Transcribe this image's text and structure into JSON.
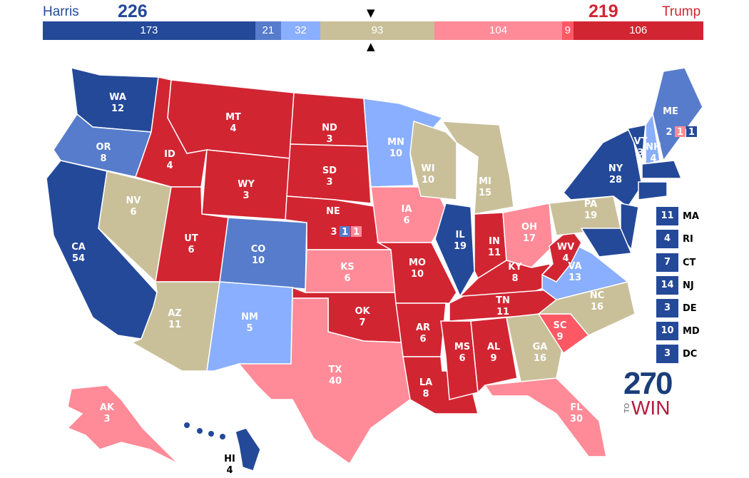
{
  "header": {
    "dem_name": "Harris",
    "dem_total": "226",
    "rep_name": "Trump",
    "rep_total": "219"
  },
  "colors": {
    "safe_d": "#244999",
    "likely_d": "#577ccc",
    "lean_d": "#8aafff",
    "tossup": "#c9c09a",
    "lean_r": "#ff8b98",
    "likely_r": "#ff5865",
    "safe_r": "#d22532"
  },
  "bar": [
    {
      "cat": "safe_d",
      "value": "173"
    },
    {
      "cat": "likely_d",
      "value": "21"
    },
    {
      "cat": "lean_d",
      "value": "32"
    },
    {
      "cat": "tossup",
      "value": "93"
    },
    {
      "cat": "lean_r",
      "value": "104"
    },
    {
      "cat": "likely_r",
      "value": "9"
    },
    {
      "cat": "safe_r",
      "value": "106"
    }
  ],
  "states": [
    {
      "abbr": "WA",
      "ev": "12",
      "cat": "safe_d"
    },
    {
      "abbr": "OR",
      "ev": "8",
      "cat": "likely_d"
    },
    {
      "abbr": "CA",
      "ev": "54",
      "cat": "safe_d"
    },
    {
      "abbr": "NV",
      "ev": "6",
      "cat": "tossup"
    },
    {
      "abbr": "ID",
      "ev": "4",
      "cat": "safe_r"
    },
    {
      "abbr": "MT",
      "ev": "4",
      "cat": "safe_r"
    },
    {
      "abbr": "WY",
      "ev": "3",
      "cat": "safe_r"
    },
    {
      "abbr": "UT",
      "ev": "6",
      "cat": "safe_r"
    },
    {
      "abbr": "AZ",
      "ev": "11",
      "cat": "tossup"
    },
    {
      "abbr": "CO",
      "ev": "10",
      "cat": "likely_d"
    },
    {
      "abbr": "NM",
      "ev": "5",
      "cat": "lean_d"
    },
    {
      "abbr": "ND",
      "ev": "3",
      "cat": "safe_r"
    },
    {
      "abbr": "SD",
      "ev": "3",
      "cat": "safe_r"
    },
    {
      "abbr": "NE",
      "ev": "3",
      "cat": "safe_r"
    },
    {
      "abbr": "KS",
      "ev": "6",
      "cat": "lean_r"
    },
    {
      "abbr": "OK",
      "ev": "7",
      "cat": "safe_r"
    },
    {
      "abbr": "TX",
      "ev": "40",
      "cat": "lean_r"
    },
    {
      "abbr": "MN",
      "ev": "10",
      "cat": "lean_d"
    },
    {
      "abbr": "IA",
      "ev": "6",
      "cat": "lean_r"
    },
    {
      "abbr": "MO",
      "ev": "10",
      "cat": "safe_r"
    },
    {
      "abbr": "AR",
      "ev": "6",
      "cat": "safe_r"
    },
    {
      "abbr": "LA",
      "ev": "8",
      "cat": "safe_r"
    },
    {
      "abbr": "WI",
      "ev": "10",
      "cat": "tossup"
    },
    {
      "abbr": "IL",
      "ev": "19",
      "cat": "safe_d"
    },
    {
      "abbr": "MI",
      "ev": "15",
      "cat": "tossup"
    },
    {
      "abbr": "IN",
      "ev": "11",
      "cat": "safe_r"
    },
    {
      "abbr": "OH",
      "ev": "17",
      "cat": "lean_r"
    },
    {
      "abbr": "KY",
      "ev": "8",
      "cat": "safe_r"
    },
    {
      "abbr": "TN",
      "ev": "11",
      "cat": "safe_r"
    },
    {
      "abbr": "MS",
      "ev": "6",
      "cat": "safe_r"
    },
    {
      "abbr": "AL",
      "ev": "9",
      "cat": "safe_r"
    },
    {
      "abbr": "GA",
      "ev": "16",
      "cat": "tossup"
    },
    {
      "abbr": "FL",
      "ev": "30",
      "cat": "lean_r"
    },
    {
      "abbr": "SC",
      "ev": "9",
      "cat": "likely_r"
    },
    {
      "abbr": "NC",
      "ev": "16",
      "cat": "tossup"
    },
    {
      "abbr": "VA",
      "ev": "13",
      "cat": "lean_d"
    },
    {
      "abbr": "WV",
      "ev": "4",
      "cat": "safe_r"
    },
    {
      "abbr": "PA",
      "ev": "19",
      "cat": "tossup"
    },
    {
      "abbr": "NY",
      "ev": "28",
      "cat": "safe_d"
    },
    {
      "abbr": "VT",
      "ev": "3",
      "cat": "safe_d"
    },
    {
      "abbr": "NH",
      "ev": "4",
      "cat": "lean_d"
    },
    {
      "abbr": "ME",
      "ev": "2",
      "cat": "likely_d"
    },
    {
      "abbr": "AK",
      "ev": "3",
      "cat": "lean_r"
    },
    {
      "abbr": "HI",
      "ev": "4",
      "cat": "safe_d"
    },
    {
      "abbr": "NJ",
      "ev": "",
      "cat": "safe_d"
    },
    {
      "abbr": "MA",
      "ev": "",
      "cat": "safe_d"
    },
    {
      "abbr": "CT",
      "ev": "",
      "cat": "safe_d"
    },
    {
      "abbr": "MD",
      "ev": "",
      "cat": "safe_d"
    }
  ],
  "districts": {
    "ne": [
      {
        "ev": "1",
        "cat": "likely_d"
      },
      {
        "ev": "1",
        "cat": "lean_r"
      }
    ],
    "me": [
      {
        "ev": "1",
        "cat": "lean_r"
      },
      {
        "ev": "1",
        "cat": "safe_d"
      }
    ]
  },
  "small_states": [
    {
      "ev": "11",
      "abbr": "MA"
    },
    {
      "ev": "4",
      "abbr": "RI"
    },
    {
      "ev": "7",
      "abbr": "CT"
    },
    {
      "ev": "14",
      "abbr": "NJ"
    },
    {
      "ev": "3",
      "abbr": "DE"
    },
    {
      "ev": "10",
      "abbr": "MD"
    },
    {
      "ev": "3",
      "abbr": "DC"
    }
  ],
  "logo": {
    "number": "270",
    "to": "TO",
    "win": "WIN"
  }
}
